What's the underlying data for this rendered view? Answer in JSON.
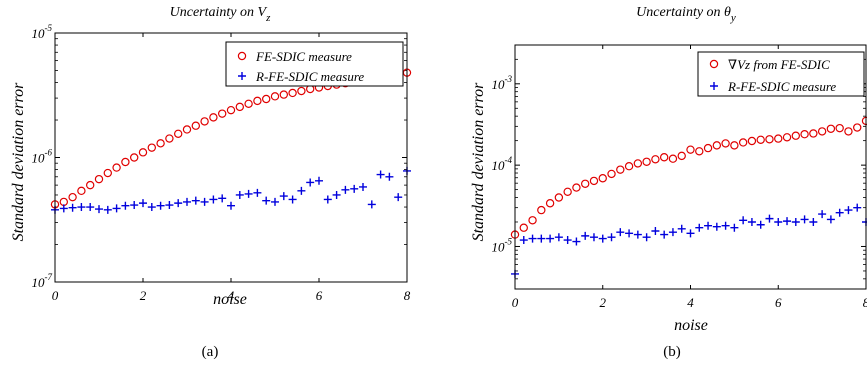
{
  "chart_data": [
    {
      "type": "scatter",
      "title": "Uncertainty on V",
      "title_sub": "z",
      "xlabel": "noise",
      "ylabel": "Standard deviation error",
      "yscale": "log",
      "xlim": [
        0,
        8
      ],
      "ylim": [
        1e-07,
        1e-05
      ],
      "xticks": [
        "0",
        "2",
        "4",
        "6",
        "8"
      ],
      "yticks": [
        {
          "base": "10",
          "exp": "-7"
        },
        {
          "base": "10",
          "exp": "-6"
        },
        {
          "base": "10",
          "exp": "-5"
        }
      ],
      "legend_position": "top-right",
      "caption": "(a)",
      "series": [
        {
          "name": "FE-SDIC measure",
          "marker": "circle",
          "color": "#e00000",
          "x": [
            0,
            0.2,
            0.4,
            0.6,
            0.8,
            1.0,
            1.2,
            1.4,
            1.6,
            1.8,
            2.0,
            2.2,
            2.4,
            2.6,
            2.8,
            3.0,
            3.2,
            3.4,
            3.6,
            3.8,
            4.0,
            4.2,
            4.4,
            4.6,
            4.8,
            5.0,
            5.2,
            5.4,
            5.6,
            5.8,
            6.0,
            6.2,
            6.4,
            6.6,
            6.8,
            7.0,
            7.2,
            7.4,
            7.6,
            7.8,
            8.0
          ],
          "y": [
            4.2e-07,
            4.4e-07,
            4.8e-07,
            5.4e-07,
            6e-07,
            6.7e-07,
            7.5e-07,
            8.3e-07,
            9.2e-07,
            1e-06,
            1.1e-06,
            1.2e-06,
            1.3e-06,
            1.42e-06,
            1.55e-06,
            1.68e-06,
            1.8e-06,
            1.95e-06,
            2.1e-06,
            2.25e-06,
            2.4e-06,
            2.55e-06,
            2.7e-06,
            2.85e-06,
            2.95e-06,
            3.1e-06,
            3.2e-06,
            3.3e-06,
            3.42e-06,
            3.55e-06,
            3.65e-06,
            3.75e-06,
            3.85e-06,
            3.95e-06,
            4.05e-06,
            4.15e-06,
            4.25e-06,
            4.3e-06,
            4.4e-06,
            4.6e-06,
            4.8e-06
          ]
        },
        {
          "name": "R-FE-SDIC measure",
          "marker": "plus",
          "color": "#0000dd",
          "x": [
            0,
            0.2,
            0.4,
            0.6,
            0.8,
            1.0,
            1.2,
            1.4,
            1.6,
            1.8,
            2.0,
            2.2,
            2.4,
            2.6,
            2.8,
            3.0,
            3.2,
            3.4,
            3.6,
            3.8,
            4.0,
            4.2,
            4.4,
            4.6,
            4.8,
            5.0,
            5.2,
            5.4,
            5.6,
            5.8,
            6.0,
            6.2,
            6.4,
            6.6,
            6.8,
            7.0,
            7.2,
            7.4,
            7.6,
            7.8,
            8.0
          ],
          "y": [
            3.8e-07,
            3.9e-07,
            3.95e-07,
            4e-07,
            4e-07,
            3.85e-07,
            3.8e-07,
            3.9e-07,
            4.1e-07,
            4.15e-07,
            4.3e-07,
            4e-07,
            4.1e-07,
            4.15e-07,
            4.3e-07,
            4.4e-07,
            4.5e-07,
            4.4e-07,
            4.6e-07,
            4.7e-07,
            4.1e-07,
            5e-07,
            5.1e-07,
            5.2e-07,
            4.5e-07,
            4.4e-07,
            4.9e-07,
            4.6e-07,
            5.4e-07,
            6.3e-07,
            6.5e-07,
            4.6e-07,
            5e-07,
            5.5e-07,
            5.6e-07,
            5.8e-07,
            4.2e-07,
            7.3e-07,
            7e-07,
            4.8e-07,
            7.8e-07
          ]
        }
      ]
    },
    {
      "type": "scatter",
      "title": "Uncertainty on θ",
      "title_sub": "y",
      "xlabel": "noise",
      "ylabel": "Standard deviation error",
      "yscale": "log",
      "xlim": [
        0,
        8
      ],
      "ylim": [
        3e-06,
        0.003
      ],
      "xticks": [
        "0",
        "2",
        "4",
        "6",
        "8"
      ],
      "yticks": [
        {
          "base": "10",
          "exp": "-5"
        },
        {
          "base": "10",
          "exp": "-4"
        },
        {
          "base": "10",
          "exp": "-3"
        }
      ],
      "legend_position": "top-right",
      "caption": "(b)",
      "series": [
        {
          "name": "∇Vz from FE-SDIC",
          "marker": "circle",
          "color": "#e00000",
          "x": [
            0,
            0.2,
            0.4,
            0.6,
            0.8,
            1.0,
            1.2,
            1.4,
            1.6,
            1.8,
            2.0,
            2.2,
            2.4,
            2.6,
            2.8,
            3.0,
            3.2,
            3.4,
            3.6,
            3.8,
            4.0,
            4.2,
            4.4,
            4.6,
            4.8,
            5.0,
            5.2,
            5.4,
            5.6,
            5.8,
            6.0,
            6.2,
            6.4,
            6.6,
            6.8,
            7.0,
            7.2,
            7.4,
            7.6,
            7.8,
            8.0
          ],
          "y": [
            1.4e-05,
            1.7e-05,
            2.1e-05,
            2.8e-05,
            3.4e-05,
            4e-05,
            4.7e-05,
            5.3e-05,
            5.9e-05,
            6.4e-05,
            6.9e-05,
            7.8e-05,
            8.8e-05,
            9.7e-05,
            0.000105,
            0.00011,
            0.000118,
            0.000125,
            0.00012,
            0.00013,
            0.000155,
            0.000148,
            0.000162,
            0.000175,
            0.000185,
            0.000175,
            0.00019,
            0.000198,
            0.000205,
            0.000208,
            0.000212,
            0.00022,
            0.00023,
            0.00024,
            0.000245,
            0.00026,
            0.00028,
            0.000285,
            0.00026,
            0.00029,
            0.00035
          ]
        },
        {
          "name": "R-FE-SDIC measure",
          "marker": "plus",
          "color": "#0000dd",
          "x": [
            0,
            0.2,
            0.4,
            0.6,
            0.8,
            1.0,
            1.2,
            1.4,
            1.6,
            1.8,
            2.0,
            2.2,
            2.4,
            2.6,
            2.8,
            3.0,
            3.2,
            3.4,
            3.6,
            3.8,
            4.0,
            4.2,
            4.4,
            4.6,
            4.8,
            5.0,
            5.2,
            5.4,
            5.6,
            5.8,
            6.0,
            6.2,
            6.4,
            6.6,
            6.8,
            7.0,
            7.2,
            7.4,
            7.6,
            7.8,
            8.0
          ],
          "y": [
            4.6e-06,
            1.2e-05,
            1.25e-05,
            1.25e-05,
            1.25e-05,
            1.3e-05,
            1.2e-05,
            1.15e-05,
            1.35e-05,
            1.3e-05,
            1.25e-05,
            1.3e-05,
            1.5e-05,
            1.45e-05,
            1.4e-05,
            1.3e-05,
            1.55e-05,
            1.4e-05,
            1.5e-05,
            1.65e-05,
            1.45e-05,
            1.7e-05,
            1.8e-05,
            1.75e-05,
            1.8e-05,
            1.7e-05,
            2.1e-05,
            2e-05,
            1.85e-05,
            2.2e-05,
            2e-05,
            2.05e-05,
            2e-05,
            2.15e-05,
            2e-05,
            2.5e-05,
            2.15e-05,
            2.6e-05,
            2.8e-05,
            3e-05,
            2e-05
          ]
        }
      ]
    }
  ]
}
